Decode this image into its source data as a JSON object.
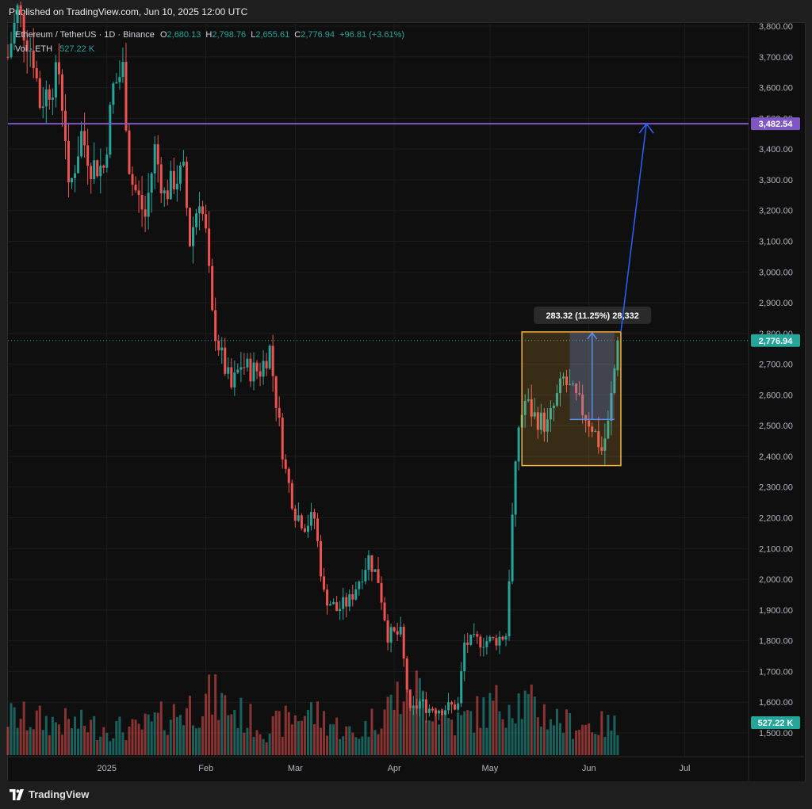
{
  "header": {
    "published": "Published on TradingView.com, Jun 10, 2025 12:00 UTC"
  },
  "footer": {
    "brand": "TradingView"
  },
  "legend": {
    "symbol": "Ethereum / TetherUS · 1D · Binance",
    "o_label": "O",
    "o": "2,680.13",
    "h_label": "H",
    "h": "2,798.76",
    "l_label": "L",
    "l": "2,655.61",
    "c_label": "C",
    "c": "2,776.94",
    "change": "+96.81 (+3.61%)",
    "vol_label": "Vol · ETH",
    "vol": "527.22 K"
  },
  "colors": {
    "up": "#26a69a",
    "down": "#ef5350",
    "hline": "#7e57c2",
    "arrow": "#2962ff",
    "box": "#f5b13d",
    "measure": "#5b8def"
  },
  "chart_data": {
    "type": "candlestick",
    "title": "Ethereum / TetherUS · 1D · Binance",
    "y_ticks": [
      1500,
      1600,
      1700,
      1800,
      1900,
      2000,
      2100,
      2200,
      2300,
      2400,
      2500,
      2600,
      2700,
      2800,
      2900,
      3000,
      3100,
      3200,
      3300,
      3400,
      3500,
      3600,
      3700,
      3800
    ],
    "y_tick_labels": [
      "1,500.00",
      "1,600.00",
      "1,700.00",
      "1,800.00",
      "1,900.00",
      "2,000.00",
      "2,100.00",
      "2,200.00",
      "2,300.00",
      "2,400.00",
      "2,500.00",
      "2,600.00",
      "2,700.00",
      "2,800.00",
      "2,900.00",
      "3,000.00",
      "3,100.00",
      "3,200.00",
      "3,300.00",
      "3,400.00",
      "3,500.00",
      "3,600.00",
      "3,700.00",
      "3,800.00"
    ],
    "x_ticks": [
      {
        "label": "2025",
        "date": "2025-01-01"
      },
      {
        "label": "Feb",
        "date": "2025-02-01"
      },
      {
        "label": "Mar",
        "date": "2025-03-01"
      },
      {
        "label": "Apr",
        "date": "2025-04-01"
      },
      {
        "label": "May",
        "date": "2025-05-01"
      },
      {
        "label": "Jun",
        "date": "2025-06-01"
      },
      {
        "label": "Jul",
        "date": "2025-07-01"
      }
    ],
    "x_range": [
      "2024-12-01",
      "2025-07-21"
    ],
    "y_range": [
      1440,
      3830
    ],
    "volume_range": [
      0,
      1500
    ],
    "price_path": [
      [
        "2024-12-01",
        3700
      ],
      [
        "2024-12-04",
        3850
      ],
      [
        "2024-12-09",
        3700
      ],
      [
        "2024-12-11",
        3550
      ],
      [
        "2024-12-14",
        3600
      ],
      [
        "2024-12-17",
        3650
      ],
      [
        "2024-12-19",
        3450
      ],
      [
        "2024-12-20",
        3250
      ],
      [
        "2024-12-24",
        3450
      ],
      [
        "2024-12-27",
        3350
      ],
      [
        "2024-12-31",
        3340
      ],
      [
        "2025-01-03",
        3600
      ],
      [
        "2025-01-06",
        3660
      ],
      [
        "2025-01-08",
        3350
      ],
      [
        "2025-01-09",
        3290
      ],
      [
        "2025-01-13",
        3180
      ],
      [
        "2025-01-16",
        3400
      ],
      [
        "2025-01-19",
        3250
      ],
      [
        "2025-01-22",
        3300
      ],
      [
        "2025-01-25",
        3320
      ],
      [
        "2025-01-27",
        3100
      ],
      [
        "2025-01-30",
        3250
      ],
      [
        "2025-02-01",
        3120
      ],
      [
        "2025-02-03",
        2850
      ],
      [
        "2025-02-06",
        2720
      ],
      [
        "2025-02-09",
        2620
      ],
      [
        "2025-02-12",
        2700
      ],
      [
        "2025-02-15",
        2680
      ],
      [
        "2025-02-18",
        2680
      ],
      [
        "2025-02-21",
        2750
      ],
      [
        "2025-02-24",
        2500
      ],
      [
        "2025-02-26",
        2350
      ],
      [
        "2025-03-01",
        2220
      ],
      [
        "2025-03-04",
        2180
      ],
      [
        "2025-03-07",
        2200
      ],
      [
        "2025-03-10",
        1950
      ],
      [
        "2025-03-14",
        1900
      ],
      [
        "2025-03-18",
        1930
      ],
      [
        "2025-03-24",
        2070
      ],
      [
        "2025-03-27",
        2000
      ],
      [
        "2025-03-30",
        1820
      ],
      [
        "2025-04-03",
        1820
      ],
      [
        "2025-04-06",
        1560
      ],
      [
        "2025-04-09",
        1600
      ],
      [
        "2025-04-12",
        1580
      ],
      [
        "2025-04-16",
        1580
      ],
      [
        "2025-04-21",
        1590
      ],
      [
        "2025-04-23",
        1790
      ],
      [
        "2025-04-28",
        1800
      ],
      [
        "2025-05-02",
        1800
      ],
      [
        "2025-05-06",
        1820
      ],
      [
        "2025-05-08",
        2200
      ],
      [
        "2025-05-10",
        2500
      ],
      [
        "2025-05-12",
        2580
      ],
      [
        "2025-05-15",
        2530
      ],
      [
        "2025-05-19",
        2500
      ],
      [
        "2025-05-24",
        2650
      ],
      [
        "2025-05-27",
        2600
      ],
      [
        "2025-05-30",
        2550
      ],
      [
        "2025-06-02",
        2500
      ],
      [
        "2025-06-05",
        2420
      ],
      [
        "2025-06-07",
        2500
      ],
      [
        "2025-06-10",
        2776.94
      ]
    ],
    "volume_path": [
      [
        "2024-12-01",
        600
      ],
      [
        "2024-12-20",
        500
      ],
      [
        "2025-01-10",
        400
      ],
      [
        "2025-02-03",
        900
      ],
      [
        "2025-02-20",
        400
      ],
      [
        "2025-03-05",
        700
      ],
      [
        "2025-03-20",
        300
      ],
      [
        "2025-04-06",
        1100
      ],
      [
        "2025-04-20",
        500
      ],
      [
        "2025-05-08",
        900
      ],
      [
        "2025-05-25",
        500
      ],
      [
        "2025-06-10",
        450
      ]
    ],
    "last_price": "2,776.94",
    "last_volume": "527.22 K",
    "horizontal_level": {
      "value": 3482.54,
      "label": "3,482.54"
    },
    "range_box": {
      "x0": "2025-05-11",
      "x1": "2025-06-11",
      "y0": 2370,
      "y1": 2805,
      "label": "283.32 (11.25%) 28,332"
    },
    "measure": {
      "x0": "2025-05-26",
      "x1": "2025-06-09",
      "y0": 2520,
      "y1": 2802
    },
    "projection_arrow": {
      "x0": "2025-06-11",
      "y0": 2805,
      "x1": "2025-06-19",
      "y1": 3482.54
    }
  }
}
